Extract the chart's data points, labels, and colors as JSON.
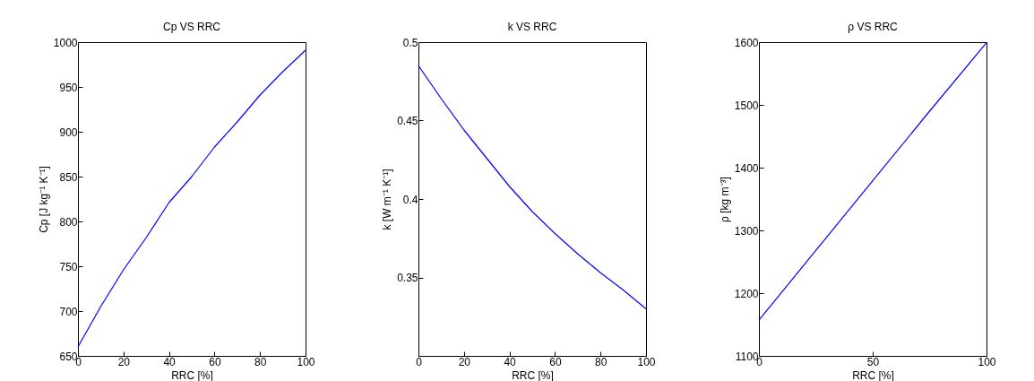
{
  "chart_data": [
    {
      "type": "line",
      "title": "Cp VS RRC",
      "xlabel": "RRC [%]",
      "ylabel": "Cp [J kg⁻¹ K⁻¹]",
      "xlim": [
        0,
        100
      ],
      "xticks": [
        0,
        20,
        40,
        60,
        80,
        100
      ],
      "ylim": [
        650,
        1000
      ],
      "yticks": [
        650,
        700,
        750,
        800,
        850,
        900,
        950,
        1000
      ],
      "color": "#0000ff",
      "x": [
        0,
        10,
        20,
        30,
        40,
        50,
        60,
        70,
        80,
        90,
        100
      ],
      "values": [
        660,
        705,
        746,
        782,
        821,
        850,
        883,
        911,
        941,
        967,
        991
      ]
    },
    {
      "type": "line",
      "title": "k VS RRC",
      "xlabel": "RRC [%]",
      "ylabel": "k [W m⁻¹ K⁻¹]",
      "xlim": [
        0,
        100
      ],
      "xticks": [
        0,
        20,
        40,
        60,
        80,
        100
      ],
      "ylim": [
        0.3,
        0.5
      ],
      "yticks": [
        0.35,
        0.4,
        0.45,
        0.5
      ],
      "color": "#0000ff",
      "x": [
        0,
        10,
        20,
        30,
        40,
        50,
        60,
        70,
        80,
        90,
        100
      ],
      "values": [
        0.485,
        0.464,
        0.444,
        0.426,
        0.408,
        0.392,
        0.378,
        0.365,
        0.353,
        0.342,
        0.33
      ]
    },
    {
      "type": "line",
      "title": "ρ VS RRC",
      "xlabel": "RRC [%]",
      "ylabel": "ρ [kg m⁻³]",
      "xlim": [
        0,
        100
      ],
      "xticks": [
        0,
        50,
        100
      ],
      "ylim": [
        1100,
        1600
      ],
      "yticks": [
        1100,
        1200,
        1300,
        1400,
        1500,
        1600
      ],
      "color": "#0000ff",
      "x": [
        0,
        25,
        50,
        75,
        100
      ],
      "values": [
        1157,
        1268,
        1379,
        1490,
        1599
      ]
    }
  ]
}
